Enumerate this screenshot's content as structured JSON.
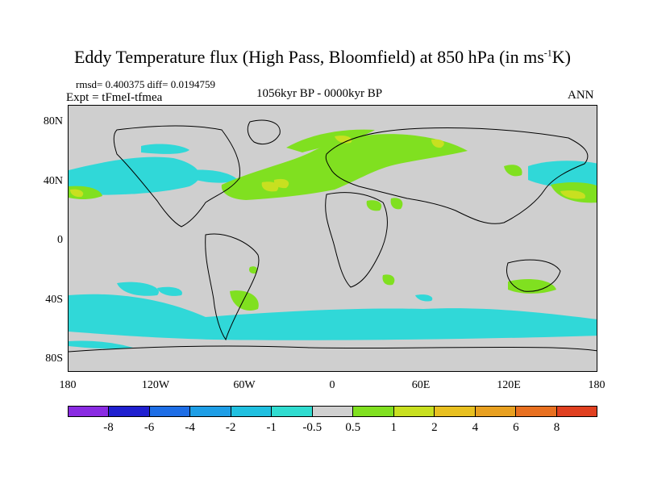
{
  "title": {
    "main": "Eddy Temperature flux (High Pass, Bloomfield) at 850 hPa (in ms",
    "sup": "-1",
    "tail": "K)"
  },
  "stats": "rmsd= 0.400375 diff= 0.0194759",
  "expt": "Expt = tFmeI-tfmea",
  "period": "1056kyr BP - 0000kyr BP",
  "season": "ANN",
  "lat_labels": [
    "80N",
    "40N",
    "0",
    "40S",
    "80S"
  ],
  "lon_labels": [
    "180",
    "120W",
    "60W",
    "0",
    "60E",
    "120E",
    "180"
  ],
  "colorbar": {
    "colors": [
      "#8a2be2",
      "#2020d0",
      "#1e6ee6",
      "#1e9ee6",
      "#20c0e0",
      "#30dcd0",
      "#d0d0d0",
      "#80e020",
      "#c8e020",
      "#e8c020",
      "#e8a020",
      "#e87020",
      "#e04020"
    ],
    "labels": [
      "-8",
      "-6",
      "-4",
      "-2",
      "-1",
      "-0.5",
      "0.5",
      "1",
      "2",
      "4",
      "6",
      "8"
    ]
  },
  "map_colors": {
    "land_sea": "#cfcfcf",
    "cyan": "#30d8d8",
    "green": "#80e020",
    "yellow": "#c8e020",
    "coast": "#000000"
  }
}
